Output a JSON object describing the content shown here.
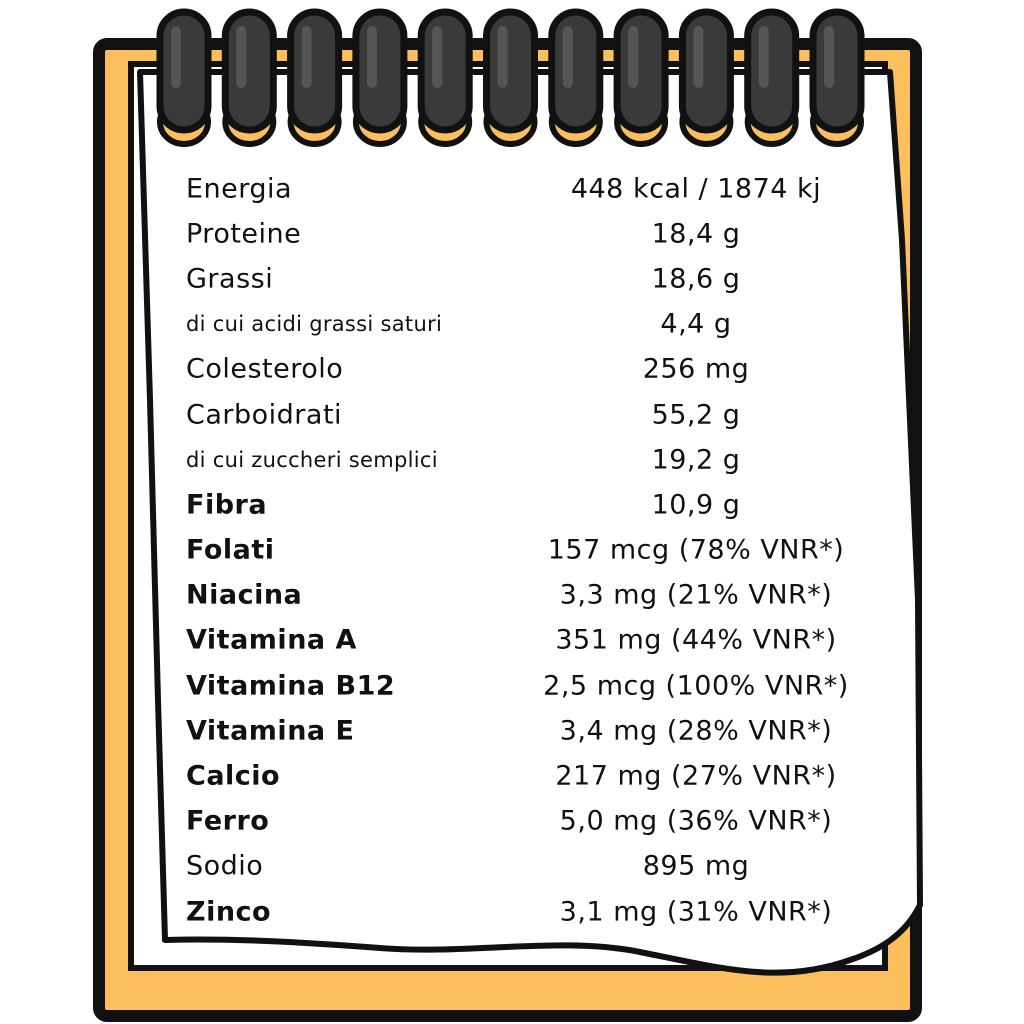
{
  "nutrition": {
    "rows": [
      {
        "label": "Energia",
        "value": "448 kcal / 1874 kj",
        "style": "regular"
      },
      {
        "label": "Proteine",
        "value": "18,4 g",
        "style": "regular"
      },
      {
        "label": "Grassi",
        "value": "18,6 g",
        "style": "regular"
      },
      {
        "label": "di cui acidi grassi saturi",
        "value": "4,4 g",
        "style": "small"
      },
      {
        "label": "Colesterolo",
        "value": "256 mg",
        "style": "regular"
      },
      {
        "label": "Carboidrati",
        "value": "55,2 g",
        "style": "regular"
      },
      {
        "label": "di cui zuccheri semplici",
        "value": "19,2 g",
        "style": "small"
      },
      {
        "label": "Fibra",
        "value": "10,9 g",
        "style": "bold"
      },
      {
        "label": "Folati",
        "value": "157 mcg (78% VNR*)",
        "style": "bold"
      },
      {
        "label": "Niacina",
        "value": "3,3 mg (21% VNR*)",
        "style": "bold"
      },
      {
        "label": "Vitamina A",
        "value": "351 mg (44% VNR*)",
        "style": "bold"
      },
      {
        "label": "Vitamina B12",
        "value": "2,5 mcg (100% VNR*)",
        "style": "bold"
      },
      {
        "label": "Vitamina E",
        "value": "3,4 mg (28% VNR*)",
        "style": "bold"
      },
      {
        "label": "Calcio",
        "value": "217 mg (27% VNR*)",
        "style": "bold"
      },
      {
        "label": "Ferro",
        "value": "5,0 mg (36% VNR*)",
        "style": "bold"
      },
      {
        "label": "Sodio",
        "value": "895 mg",
        "style": "regular"
      },
      {
        "label": "Zinco",
        "value": "3,1 mg (31% VNR*)",
        "style": "bold"
      }
    ]
  },
  "colors": {
    "backing": "#FDBE5C",
    "outline": "#111111",
    "paper": "#ffffff",
    "ring": "#3a3a3a"
  },
  "icons": {
    "binding": "spiral-ring-icon"
  }
}
